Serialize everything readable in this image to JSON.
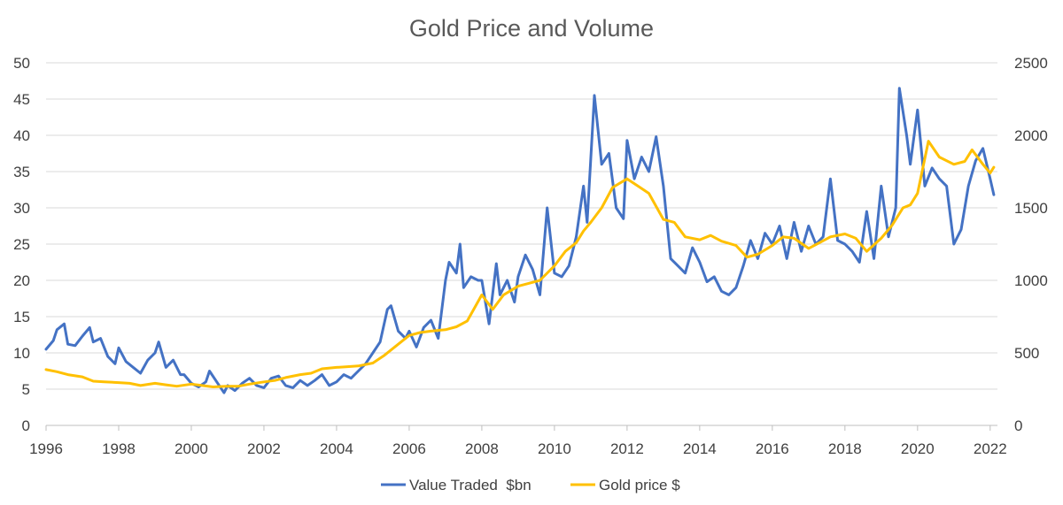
{
  "chart_data": {
    "type": "line",
    "title": "Gold Price and Volume",
    "xlabel": "",
    "ylabel": "",
    "y2label": "",
    "xlim": [
      1996,
      2022.2
    ],
    "ylim": [
      0,
      50
    ],
    "y2lim": [
      0,
      2500
    ],
    "x_ticks": [
      "1996",
      "1998",
      "2000",
      "2002",
      "2004",
      "2006",
      "2008",
      "2010",
      "2012",
      "2014",
      "2016",
      "2018",
      "2020",
      "2022"
    ],
    "y_ticks": [
      "0",
      "5",
      "10",
      "15",
      "20",
      "25",
      "30",
      "35",
      "40",
      "45",
      "50"
    ],
    "y2_ticks": [
      "0",
      "500",
      "1000",
      "1500",
      "2000",
      "2500"
    ],
    "grid": true,
    "legend_position": "bottom",
    "colors": {
      "value_traded": "#4472c4",
      "gold_price": "#ffc000"
    },
    "series": [
      {
        "name": "Value Traded  $bn",
        "axis": "left",
        "x": [
          1996.0,
          1996.2,
          1996.3,
          1996.5,
          1996.6,
          1996.8,
          1997.0,
          1997.2,
          1997.3,
          1997.5,
          1997.7,
          1997.9,
          1998.0,
          1998.2,
          1998.4,
          1998.6,
          1998.8,
          1999.0,
          1999.1,
          1999.3,
          1999.5,
          1999.7,
          1999.8,
          2000.0,
          2000.2,
          2000.4,
          2000.5,
          2000.7,
          2000.9,
          2001.0,
          2001.2,
          2001.4,
          2001.6,
          2001.8,
          2002.0,
          2002.2,
          2002.4,
          2002.6,
          2002.8,
          2003.0,
          2003.2,
          2003.4,
          2003.6,
          2003.8,
          2004.0,
          2004.2,
          2004.4,
          2004.6,
          2004.8,
          2005.0,
          2005.2,
          2005.4,
          2005.5,
          2005.7,
          2005.9,
          2006.0,
          2006.2,
          2006.4,
          2006.6,
          2006.8,
          2007.0,
          2007.1,
          2007.3,
          2007.4,
          2007.5,
          2007.7,
          2007.9,
          2008.0,
          2008.2,
          2008.4,
          2008.5,
          2008.7,
          2008.9,
          2009.0,
          2009.2,
          2009.4,
          2009.6,
          2009.8,
          2010.0,
          2010.2,
          2010.4,
          2010.6,
          2010.8,
          2010.9,
          2011.1,
          2011.3,
          2011.5,
          2011.7,
          2011.9,
          2012.0,
          2012.2,
          2012.4,
          2012.6,
          2012.8,
          2013.0,
          2013.2,
          2013.4,
          2013.6,
          2013.8,
          2014.0,
          2014.2,
          2014.4,
          2014.6,
          2014.8,
          2015.0,
          2015.2,
          2015.4,
          2015.6,
          2015.8,
          2016.0,
          2016.2,
          2016.4,
          2016.6,
          2016.8,
          2017.0,
          2017.2,
          2017.4,
          2017.6,
          2017.8,
          2018.0,
          2018.2,
          2018.4,
          2018.6,
          2018.8,
          2019.0,
          2019.2,
          2019.4,
          2019.5,
          2019.7,
          2019.8,
          2020.0,
          2020.2,
          2020.4,
          2020.6,
          2020.8,
          2021.0,
          2021.2,
          2021.4,
          2021.6,
          2021.8,
          2022.0,
          2022.1
        ],
        "values": [
          10.5,
          11.7,
          13.2,
          14.0,
          11.2,
          11.0,
          12.3,
          13.5,
          11.5,
          12.0,
          9.5,
          8.5,
          10.7,
          8.8,
          8.0,
          7.2,
          9.0,
          10.0,
          11.5,
          8.0,
          9.0,
          7.0,
          7.0,
          5.8,
          5.3,
          6.0,
          7.5,
          6.0,
          4.5,
          5.5,
          4.8,
          5.8,
          6.5,
          5.5,
          5.2,
          6.5,
          6.8,
          5.5,
          5.2,
          6.2,
          5.5,
          6.2,
          7.0,
          5.5,
          6.0,
          7.0,
          6.5,
          7.5,
          8.5,
          10.0,
          11.5,
          16.0,
          16.5,
          13.0,
          12.0,
          13.0,
          10.8,
          13.5,
          14.5,
          12.0,
          20.0,
          22.5,
          21.0,
          25.0,
          19.0,
          20.5,
          20.0,
          20.0,
          14.0,
          22.3,
          18.0,
          20.0,
          17.0,
          20.5,
          23.5,
          21.5,
          18.0,
          30.0,
          21.0,
          20.5,
          22.0,
          26.0,
          33.0,
          28.0,
          45.5,
          36.0,
          37.5,
          30.0,
          28.5,
          39.3,
          34.0,
          37.0,
          35.0,
          39.8,
          33.0,
          23.0,
          22.0,
          21.0,
          24.5,
          22.5,
          19.8,
          20.5,
          18.5,
          18.0,
          19.0,
          22.0,
          25.5,
          23.0,
          26.5,
          25.0,
          27.5,
          23.0,
          28.0,
          24.0,
          27.5,
          25.0,
          26.0,
          34.0,
          25.5,
          25.0,
          24.0,
          22.5,
          29.5,
          23.0,
          33.0,
          26.0,
          30.0,
          46.5,
          40.0,
          36.0,
          43.5,
          33.0,
          35.5,
          34.0,
          33.0,
          25.0,
          27.0,
          33.0,
          36.5,
          38.2,
          34.0,
          31.8
        ]
      },
      {
        "name": "Gold price $",
        "axis": "right",
        "x": [
          1996.0,
          1996.3,
          1996.6,
          1997.0,
          1997.3,
          1997.6,
          1998.0,
          1998.3,
          1998.6,
          1999.0,
          1999.3,
          1999.6,
          2000.0,
          2000.3,
          2000.6,
          2001.0,
          2001.3,
          2001.6,
          2002.0,
          2002.3,
          2002.6,
          2003.0,
          2003.3,
          2003.6,
          2004.0,
          2004.3,
          2004.6,
          2005.0,
          2005.3,
          2005.6,
          2006.0,
          2006.3,
          2006.6,
          2007.0,
          2007.3,
          2007.6,
          2008.0,
          2008.3,
          2008.6,
          2009.0,
          2009.3,
          2009.6,
          2010.0,
          2010.3,
          2010.6,
          2010.8,
          2011.0,
          2011.3,
          2011.6,
          2012.0,
          2012.3,
          2012.6,
          2013.0,
          2013.3,
          2013.6,
          2014.0,
          2014.3,
          2014.6,
          2015.0,
          2015.3,
          2015.6,
          2016.0,
          2016.3,
          2016.6,
          2017.0,
          2017.3,
          2017.6,
          2018.0,
          2018.3,
          2018.6,
          2019.0,
          2019.3,
          2019.6,
          2019.8,
          2020.0,
          2020.3,
          2020.6,
          2021.0,
          2021.3,
          2021.5,
          2021.8,
          2022.0,
          2022.1
        ],
        "values": [
          385,
          370,
          350,
          335,
          305,
          300,
          295,
          290,
          275,
          290,
          280,
          270,
          285,
          275,
          265,
          270,
          270,
          285,
          300,
          310,
          330,
          350,
          360,
          390,
          400,
          405,
          410,
          430,
          480,
          540,
          620,
          640,
          650,
          660,
          680,
          720,
          900,
          800,
          900,
          960,
          980,
          1000,
          1100,
          1200,
          1260,
          1340,
          1400,
          1500,
          1640,
          1700,
          1650,
          1600,
          1420,
          1400,
          1300,
          1280,
          1310,
          1270,
          1240,
          1160,
          1180,
          1240,
          1300,
          1290,
          1220,
          1260,
          1300,
          1320,
          1290,
          1200,
          1290,
          1380,
          1500,
          1520,
          1600,
          1960,
          1850,
          1800,
          1820,
          1900,
          1800,
          1740,
          1780
        ]
      }
    ]
  }
}
